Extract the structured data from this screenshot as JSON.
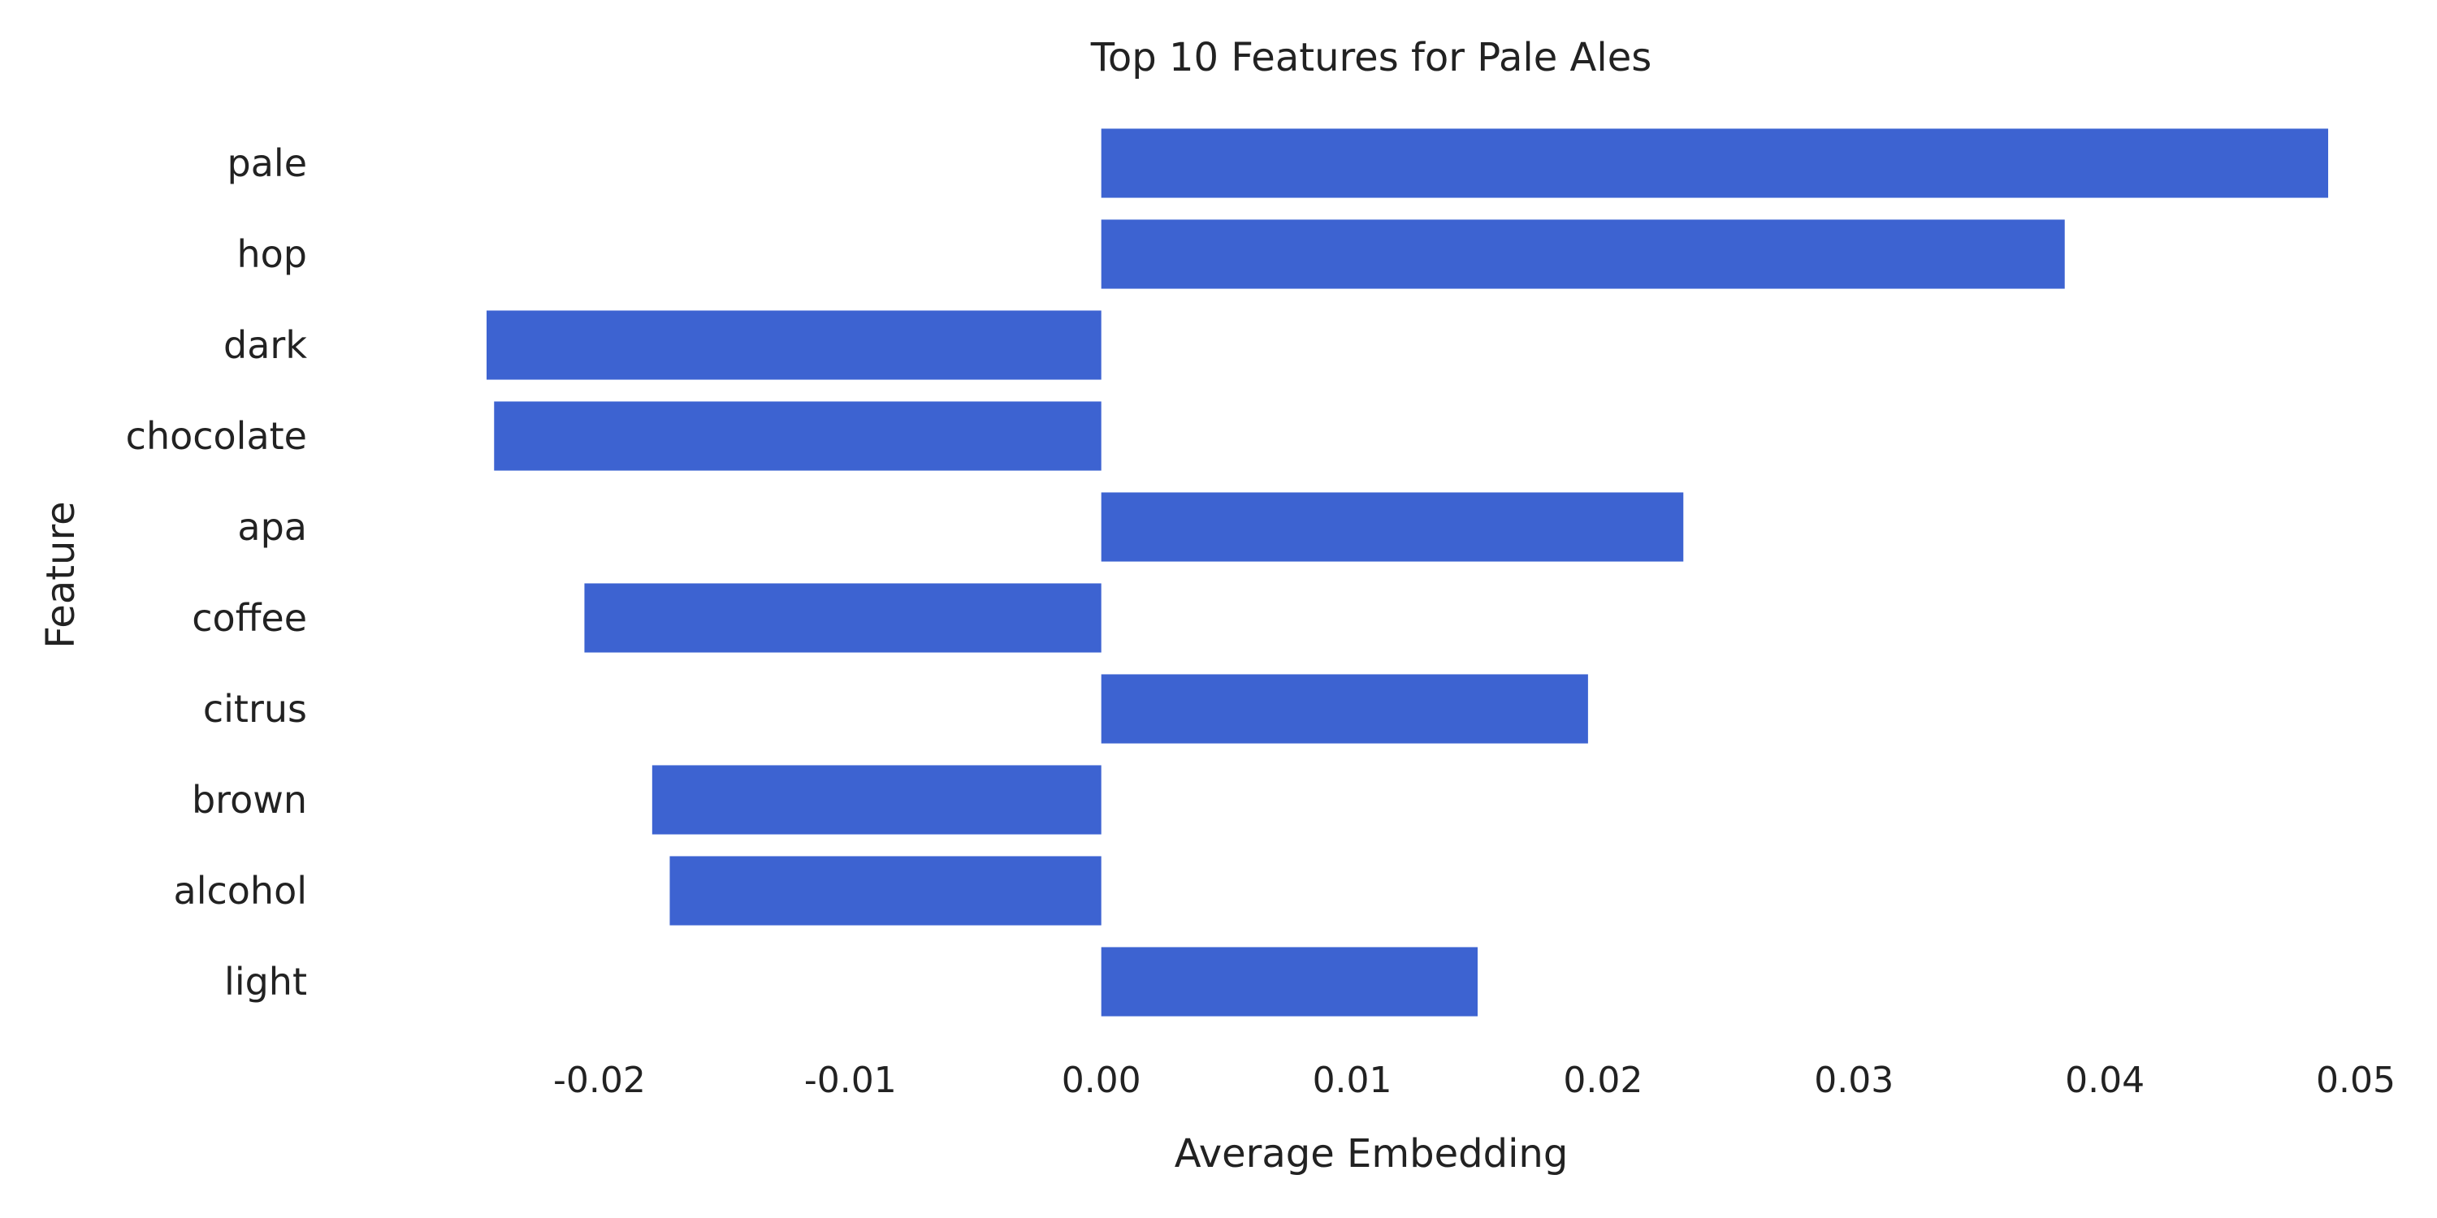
{
  "chart_data": {
    "type": "bar",
    "orientation": "horizontal",
    "title": "Top 10 Features for Pale Ales",
    "xlabel": "Average Embedding",
    "ylabel": "Feature",
    "categories": [
      "pale",
      "hop",
      "dark",
      "chocolate",
      "apa",
      "coffee",
      "citrus",
      "brown",
      "alcohol",
      "light"
    ],
    "values": [
      0.0489,
      0.0384,
      -0.0245,
      -0.0242,
      0.0232,
      -0.0206,
      0.0194,
      -0.0179,
      -0.0172,
      0.015
    ],
    "xlim": [
      -0.029,
      0.05
    ],
    "xticks": [
      -0.02,
      -0.01,
      0.0,
      0.01,
      0.02,
      0.03,
      0.04,
      0.05
    ],
    "xtick_labels": [
      "-0.02",
      "-0.01",
      "0.00",
      "0.01",
      "0.02",
      "0.03",
      "0.04",
      "0.05"
    ],
    "grid": false,
    "legend": "none",
    "bar_color": "#3d63d1"
  }
}
